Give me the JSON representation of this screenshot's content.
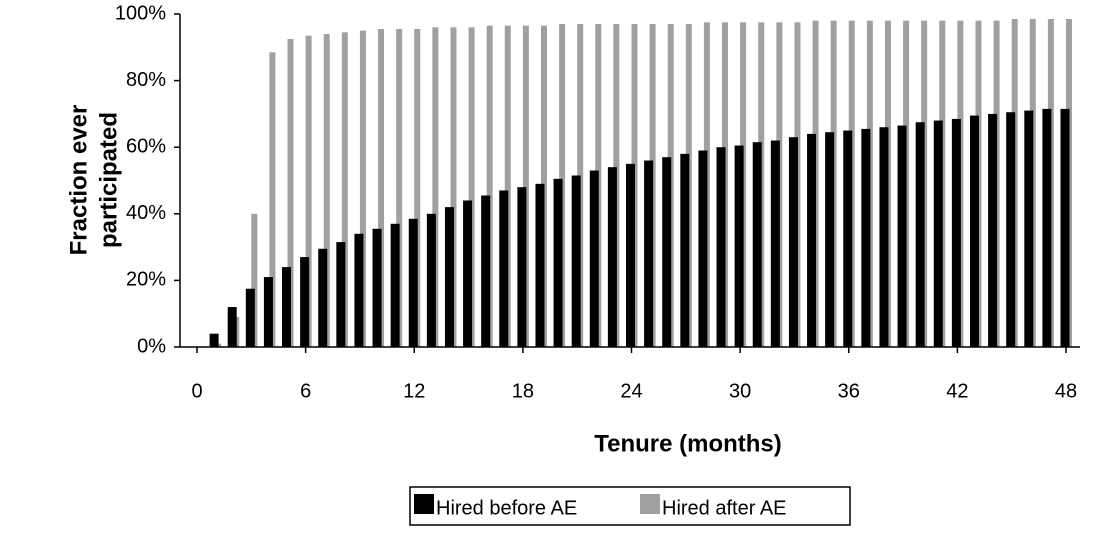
{
  "chart_data": {
    "type": "bar",
    "ylabel": [
      "Fraction ever",
      "participated"
    ],
    "xlabel": "Tenure (months)",
    "x": [
      1,
      2,
      3,
      4,
      5,
      6,
      7,
      8,
      9,
      10,
      11,
      12,
      13,
      14,
      15,
      16,
      17,
      18,
      19,
      20,
      21,
      22,
      23,
      24,
      25,
      26,
      27,
      28,
      29,
      30,
      31,
      32,
      33,
      34,
      35,
      36,
      37,
      38,
      39,
      40,
      41,
      42,
      43,
      44,
      45,
      46,
      47,
      48
    ],
    "series": [
      {
        "name": "Hired before AE",
        "color": "#000000",
        "values": [
          4,
          12,
          17.5,
          21,
          24,
          27,
          29.5,
          31.5,
          34,
          35.5,
          37,
          38.5,
          40,
          42,
          44,
          45.5,
          47,
          48,
          49,
          50.5,
          51.5,
          53,
          54,
          55,
          56,
          57,
          58,
          59,
          60,
          60.5,
          61.5,
          62,
          63,
          64,
          64.5,
          65,
          65.5,
          66,
          66.5,
          67.5,
          68,
          68.5,
          69.5,
          70,
          70.5,
          71,
          71.5,
          71.5
        ]
      },
      {
        "name": "Hired after AE",
        "color": "#a0a0a0",
        "values": [
          1,
          9,
          40,
          88.5,
          92.5,
          93.5,
          94,
          94.5,
          95,
          95.5,
          95.5,
          95.5,
          96,
          96,
          96,
          96.5,
          96.5,
          96.5,
          96.5,
          97,
          97,
          97,
          97,
          97,
          97,
          97,
          97,
          97.5,
          97.5,
          97.5,
          97.5,
          97.5,
          97.5,
          98,
          98,
          98,
          98,
          98,
          98,
          98,
          98,
          98,
          98,
          98,
          98.5,
          98.5,
          98.5,
          98.5
        ]
      }
    ],
    "xlim": [
      0,
      48
    ],
    "xticks": [
      0,
      6,
      12,
      18,
      24,
      30,
      36,
      42,
      48
    ],
    "ylim": [
      0,
      100
    ],
    "yticks": [
      {
        "value": 0,
        "label": "0%"
      },
      {
        "value": 20,
        "label": "20%"
      },
      {
        "value": 40,
        "label": "40%"
      },
      {
        "value": 60,
        "label": "60%"
      },
      {
        "value": 80,
        "label": "80%"
      },
      {
        "value": 100,
        "label": "100%"
      }
    ],
    "legend": "bottom"
  }
}
